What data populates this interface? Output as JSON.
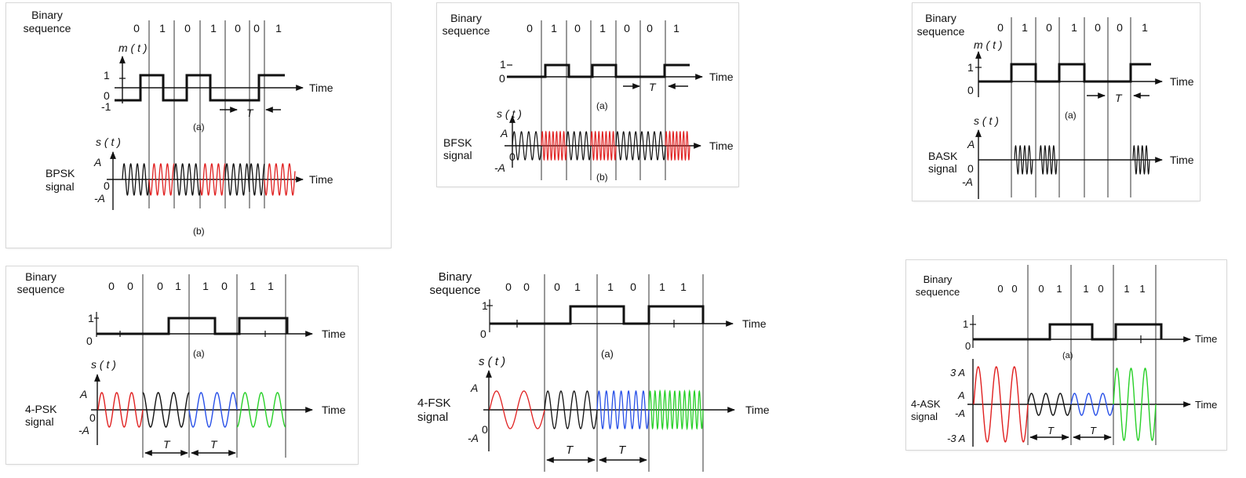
{
  "labels": {
    "binary_sequence": [
      "Binary",
      "sequence"
    ],
    "time": "Time",
    "m_t": "m ( t )",
    "s_t": "s ( t )",
    "period": "T",
    "sub_a": "(a)",
    "sub_b": "(b)",
    "sub_a_cut": "(a)"
  },
  "panels": {
    "bpsk": {
      "bits": [
        "0",
        "1",
        "0",
        "1",
        "0",
        "0",
        "1"
      ],
      "levels": {
        "hi": "1",
        "zero": "0",
        "lo": "-1"
      },
      "amp": {
        "pos": "A",
        "zero": "0",
        "neg": "-A"
      },
      "signal_label": [
        "BPSK",
        "signal"
      ]
    },
    "bfsk": {
      "bits": [
        "0",
        "1",
        "0",
        "1",
        "0",
        "0",
        "1"
      ],
      "levels": {
        "hi": "1",
        "zero": "0"
      },
      "amp": {
        "pos": "A",
        "zero": "0",
        "neg": "-A"
      },
      "signal_label": [
        "BFSK",
        "signal"
      ]
    },
    "bask": {
      "bits": [
        "0",
        "1",
        "0",
        "1",
        "0",
        "0",
        "1"
      ],
      "levels": {
        "hi": "1",
        "zero": "0"
      },
      "amp": {
        "pos": "A",
        "zero": "0",
        "neg": "-A"
      },
      "signal_label": [
        "BASK",
        "signal"
      ]
    },
    "psk4": {
      "bits": [
        "0",
        "0",
        "0",
        "1",
        "1",
        "0",
        "1",
        "1"
      ],
      "levels": {
        "hi": "1",
        "zero": "0"
      },
      "amp": {
        "pos": "A",
        "zero": "0",
        "neg": "-A"
      },
      "signal_label": [
        "4-PSK",
        "signal"
      ]
    },
    "fsk4": {
      "bits": [
        "0",
        "0",
        "0",
        "1",
        "1",
        "0",
        "1",
        "1"
      ],
      "levels": {
        "hi": "1",
        "zero": "0"
      },
      "amp": {
        "pos": "A",
        "zero": "0",
        "neg": "-A"
      },
      "signal_label": [
        "4-FSK",
        "signal"
      ]
    },
    "ask4": {
      "bits": [
        "0",
        "0",
        "0",
        "1",
        "1",
        "0",
        "1",
        "1"
      ],
      "levels": {
        "hi": "1",
        "zero": "0"
      },
      "amp": {
        "pos3": "3 A",
        "pos": "A",
        "neg": "-A",
        "neg3": "-3 A"
      },
      "signal_label": [
        "4-ASK",
        "signal"
      ]
    }
  },
  "colors": {
    "ink": "#111111",
    "gridline": "#555555",
    "red": "#e02020",
    "blue": "#2850e8",
    "green": "#28d028"
  }
}
